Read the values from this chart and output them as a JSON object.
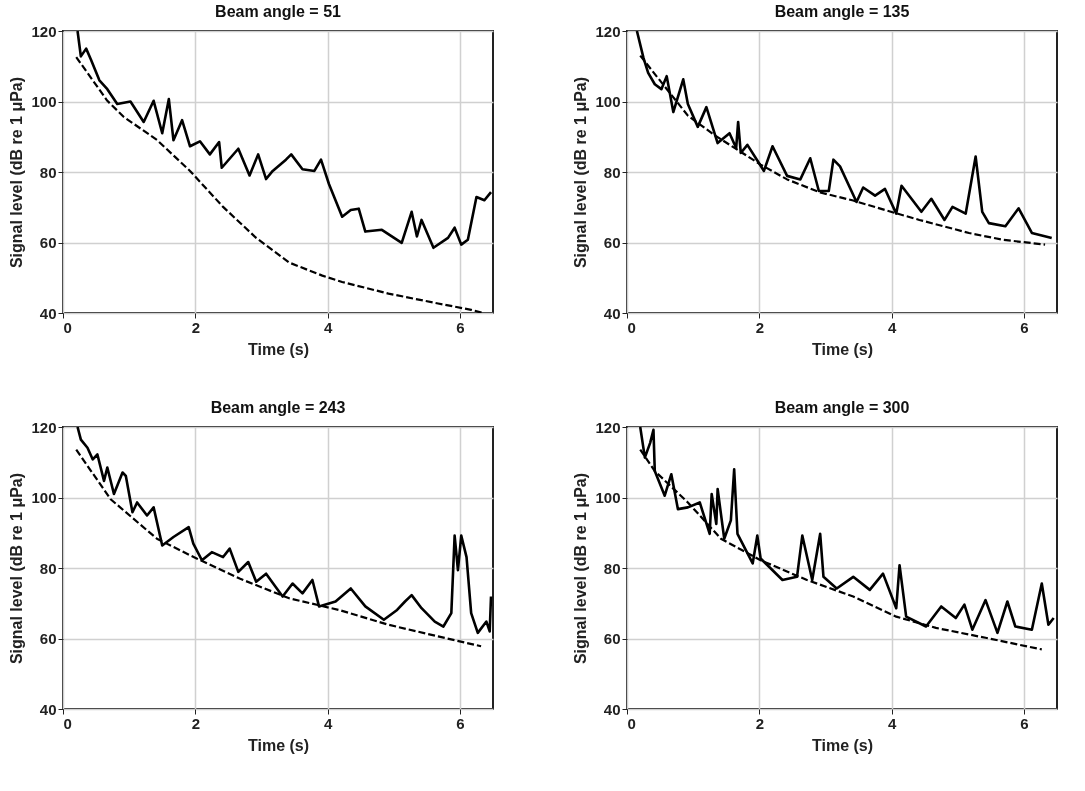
{
  "chart_data": [
    {
      "type": "line",
      "title": "Beam angle = 51",
      "xlabel": "Time (s)",
      "ylabel": "Signal level (dB re 1 μPa)",
      "xlim": [
        0,
        6.5
      ],
      "ylim": [
        40,
        120
      ],
      "xticks": [
        0,
        2,
        4,
        6
      ],
      "yticks": [
        40,
        60,
        80,
        100,
        120
      ],
      "grid": true,
      "series": [
        {
          "color": "#000000",
          "line_style": "solid",
          "x": [
            0.22,
            0.27,
            0.35,
            0.42,
            0.55,
            0.67,
            0.82,
            1.02,
            1.22,
            1.37,
            1.5,
            1.6,
            1.67,
            1.8,
            1.92,
            2.07,
            2.22,
            2.36,
            2.4,
            2.65,
            2.82,
            2.95,
            3.07,
            3.17,
            3.37,
            3.45,
            3.62,
            3.8,
            3.9,
            4.02,
            4.22,
            4.35,
            4.47,
            4.57,
            4.82,
            5.12,
            5.27,
            5.35,
            5.42,
            5.6,
            5.82,
            5.92,
            6.02,
            6.12,
            6.25,
            6.37,
            6.47
          ],
          "values": [
            120,
            112.8,
            115,
            112,
            106,
            103.5,
            99.3,
            100,
            94.2,
            100.2,
            91,
            100.7,
            89,
            94.7,
            87.3,
            88.7,
            85,
            88.5,
            81.2,
            86.6,
            79,
            85,
            78,
            80.3,
            83.5,
            85,
            80.8,
            80.3,
            83.5,
            76.6,
            67.3,
            69.2,
            69.6,
            63.1,
            63.6,
            59.9,
            68.7,
            61.7,
            66.4,
            58.5,
            61.3,
            64.2,
            59.4,
            60.8,
            72.9,
            72,
            74.3
          ]
        },
        {
          "color": "#000000",
          "line_style": "dashed",
          "x": [
            0.2,
            0.67,
            0.92,
            1.42,
            1.92,
            2.42,
            2.92,
            3.42,
            3.92,
            4.22,
            4.92,
            5.67,
            6.17,
            6.35
          ],
          "values": [
            112.6,
            100.2,
            95.6,
            89.1,
            80.3,
            70.1,
            61.3,
            54.3,
            50.6,
            48.8,
            45.5,
            42.7,
            40.9,
            40
          ]
        }
      ]
    },
    {
      "type": "line",
      "title": "Beam angle = 135",
      "xlabel": "Time (s)",
      "ylabel": "Signal level (dB re 1 μPa)",
      "xlim": [
        0,
        6.5
      ],
      "ylim": [
        40,
        120
      ],
      "xticks": [
        0,
        2,
        4,
        6
      ],
      "yticks": [
        40,
        60,
        80,
        100,
        120
      ],
      "grid": true,
      "series": [
        {
          "color": "#000000",
          "line_style": "solid",
          "x": [
            0.15,
            0.25,
            0.32,
            0.42,
            0.52,
            0.6,
            0.7,
            0.85,
            0.92,
            1.07,
            1.2,
            1.37,
            1.55,
            1.65,
            1.68,
            1.72,
            1.82,
            2.07,
            2.2,
            2.42,
            2.62,
            2.77,
            2.9,
            3.05,
            3.12,
            3.22,
            3.47,
            3.57,
            3.75,
            3.9,
            4.07,
            4.15,
            4.45,
            4.6,
            4.8,
            4.92,
            5.12,
            5.27,
            5.37,
            5.47,
            5.72,
            5.92,
            6.12,
            6.42
          ],
          "values": [
            120,
            112.3,
            108.1,
            104.9,
            103.5,
            107.2,
            97,
            106.3,
            99.3,
            92.8,
            98.4,
            88.2,
            91,
            86.8,
            94.2,
            85.4,
            87.7,
            80.3,
            87.3,
            78.9,
            77.9,
            83.9,
            74.6,
            74.6,
            83.5,
            81.6,
            71.5,
            75.6,
            73.3,
            75.2,
            68.2,
            76.1,
            68.7,
            72.4,
            66.4,
            70.1,
            68.2,
            84.4,
            68.7,
            65.5,
            64.6,
            69.7,
            62.7,
            61.3
          ]
        },
        {
          "color": "#000000",
          "line_style": "dashed",
          "x": [
            0.2,
            0.92,
            1.32,
            2.02,
            2.42,
            2.92,
            3.42,
            3.92,
            4.42,
            5.17,
            5.67,
            6.32
          ],
          "values": [
            113,
            96,
            90.5,
            82.1,
            77.9,
            74.2,
            71.9,
            69.1,
            66.4,
            62.7,
            60.8,
            59.4
          ]
        }
      ]
    },
    {
      "type": "line",
      "title": "Beam angle = 243",
      "xlabel": "Time (s)",
      "ylabel": "Signal level (dB re 1 μPa)",
      "xlim": [
        0,
        6.5
      ],
      "ylim": [
        40,
        120
      ],
      "xticks": [
        0,
        2,
        4,
        6
      ],
      "yticks": [
        40,
        60,
        80,
        100,
        120
      ],
      "grid": true,
      "series": [
        {
          "color": "#000000",
          "line_style": "solid",
          "x": [
            0.22,
            0.27,
            0.37,
            0.45,
            0.52,
            0.62,
            0.67,
            0.77,
            0.9,
            0.95,
            1.05,
            1.12,
            1.27,
            1.37,
            1.5,
            1.67,
            1.9,
            1.97,
            2.1,
            2.25,
            2.42,
            2.52,
            2.65,
            2.8,
            2.92,
            3.07,
            3.32,
            3.47,
            3.62,
            3.77,
            3.87,
            4.12,
            4.35,
            4.57,
            4.85,
            5.05,
            5.17,
            5.27,
            5.42,
            5.62,
            5.75,
            5.87,
            5.92,
            5.97,
            6.02,
            6.1,
            6.17,
            6.27,
            6.4,
            6.45,
            6.47
          ],
          "values": [
            120,
            116.4,
            114.1,
            110.8,
            112.2,
            104.7,
            108.5,
            101,
            107.1,
            106.1,
            95.8,
            98.6,
            94.9,
            97.2,
            86.4,
            88.8,
            91.6,
            86.9,
            82.2,
            84.5,
            83.1,
            85.5,
            78.9,
            81.7,
            76.1,
            78.4,
            71.9,
            75.6,
            72.8,
            76.6,
            69.1,
            70.5,
            74.2,
            69.1,
            65.3,
            68.1,
            70.5,
            72.3,
            68.6,
            64.8,
            63.4,
            67.2,
            89.2,
            79.4,
            89.2,
            83.1,
            67.2,
            61.6,
            64.8,
            62,
            71.9
          ]
        },
        {
          "color": "#000000",
          "line_style": "dashed",
          "x": [
            0.2,
            0.72,
            1.42,
            2.02,
            2.67,
            3.42,
            4.17,
            4.92,
            5.67,
            6.32
          ],
          "values": [
            113.6,
            99.5,
            88.3,
            82.7,
            77,
            71.4,
            68.1,
            63.9,
            60.6,
            57.8
          ]
        }
      ]
    },
    {
      "type": "line",
      "title": "Beam angle = 300",
      "xlabel": "Time (s)",
      "ylabel": "Signal level (dB re 1 μPa)",
      "xlim": [
        0,
        6.5
      ],
      "ylim": [
        40,
        120
      ],
      "xticks": [
        0,
        2,
        4,
        6
      ],
      "yticks": [
        40,
        60,
        80,
        100,
        120
      ],
      "grid": true,
      "series": [
        {
          "color": "#000000",
          "line_style": "solid",
          "x": [
            0.2,
            0.27,
            0.35,
            0.4,
            0.42,
            0.57,
            0.67,
            0.77,
            0.92,
            1.1,
            1.25,
            1.28,
            1.35,
            1.37,
            1.47,
            1.57,
            1.62,
            1.67,
            1.9,
            1.97,
            2.02,
            2.35,
            2.57,
            2.65,
            2.8,
            2.92,
            2.97,
            3.17,
            3.42,
            3.67,
            3.87,
            4.07,
            4.12,
            4.22,
            4.52,
            4.75,
            4.97,
            5.1,
            5.22,
            5.42,
            5.6,
            5.75,
            5.87,
            6.12,
            6.27,
            6.37,
            6.45
          ],
          "values": [
            120,
            111.3,
            115.5,
            119.2,
            107.5,
            100.5,
            106.6,
            96.7,
            97.2,
            98.6,
            89.7,
            101,
            92.5,
            102.4,
            88.3,
            93.5,
            108,
            89.7,
            81.3,
            89.2,
            82.7,
            76.6,
            77.5,
            89.2,
            76.6,
            89.7,
            77.5,
            74.2,
            77.5,
            73.8,
            78.4,
            68.6,
            80.8,
            66.2,
            63.4,
            69.1,
            65.8,
            69.6,
            62.5,
            70.9,
            61.6,
            70.5,
            63.4,
            62.5,
            75.6,
            63.9,
            65.8
          ]
        },
        {
          "color": "#000000",
          "line_style": "dashed",
          "x": [
            0.2,
            0.42,
            0.92,
            1.42,
            2.02,
            2.72,
            3.42,
            4.07,
            4.67,
            5.42,
            6.27
          ],
          "values": [
            113.6,
            107.5,
            98.6,
            88.3,
            82.2,
            76.6,
            71.9,
            66.2,
            63,
            60.2,
            56.9
          ]
        }
      ]
    }
  ]
}
